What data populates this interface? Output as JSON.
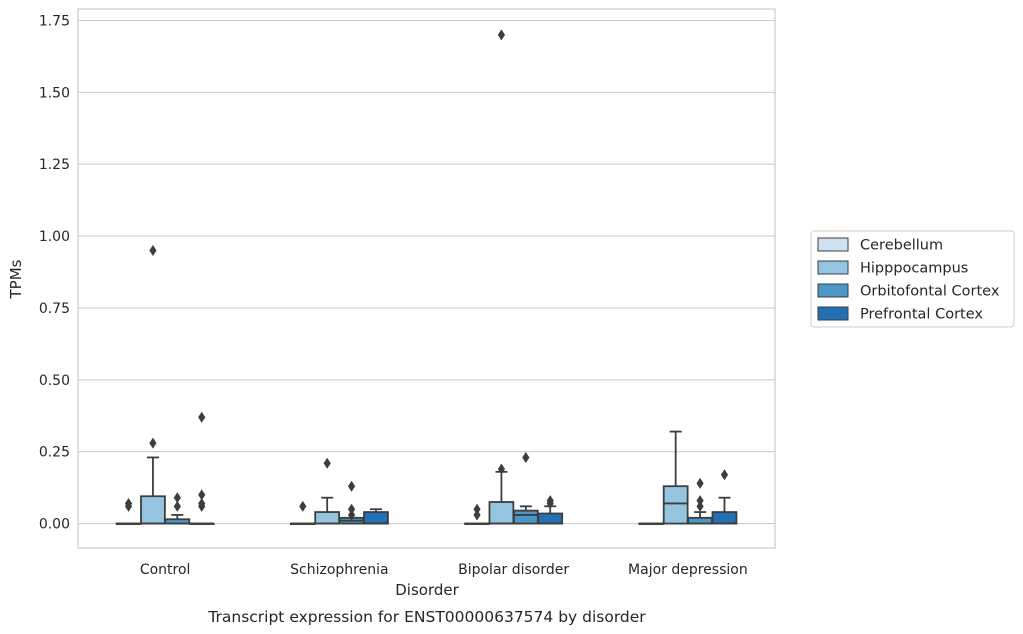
{
  "caption": "Transcript expression for ENST00000637574 by disorder",
  "chart_data": {
    "type": "box",
    "xlabel": "Disorder",
    "ylabel": "TPMs",
    "ylim": [
      -0.085,
      1.79
    ],
    "yticks": [
      0.0,
      0.25,
      0.5,
      0.75,
      1.0,
      1.25,
      1.5,
      1.75
    ],
    "ytick_labels": [
      "0.00",
      "0.25",
      "0.50",
      "0.75",
      "1.00",
      "1.25",
      "1.50",
      "1.75"
    ],
    "grid": "horizontal",
    "legend_position": "right",
    "categories": [
      "Control",
      "Schizophrenia",
      "Bipolar disorder",
      "Major depression"
    ],
    "series": [
      {
        "name": "Cerebellum",
        "color": "#d0e1f2",
        "boxes": [
          {
            "q1": 0,
            "median": 0,
            "q3": 0,
            "whislo": 0,
            "whishi": 0,
            "fliers": [
              0.06,
              0.07
            ]
          },
          {
            "q1": 0,
            "median": 0,
            "q3": 0,
            "whislo": 0,
            "whishi": 0,
            "fliers": [
              0.06
            ]
          },
          {
            "q1": 0,
            "median": 0,
            "q3": 0,
            "whislo": 0,
            "whishi": 0,
            "fliers": [
              0.03,
              0.05
            ]
          },
          {
            "q1": 0,
            "median": 0,
            "q3": 0,
            "whislo": 0,
            "whishi": 0,
            "fliers": []
          }
        ]
      },
      {
        "name": "Hipppocampus",
        "color": "#94c4df",
        "boxes": [
          {
            "q1": 0,
            "median": 0,
            "q3": 0.095,
            "whislo": 0,
            "whishi": 0.23,
            "fliers": [
              0.28,
              0.95
            ]
          },
          {
            "q1": 0,
            "median": 0,
            "q3": 0.04,
            "whislo": 0,
            "whishi": 0.09,
            "fliers": [
              0.21
            ]
          },
          {
            "q1": 0,
            "median": 0,
            "q3": 0.075,
            "whislo": 0,
            "whishi": 0.18,
            "fliers": [
              0.19,
              1.7
            ]
          },
          {
            "q1": 0,
            "median": 0.07,
            "q3": 0.13,
            "whislo": 0,
            "whishi": 0.32,
            "fliers": []
          }
        ]
      },
      {
        "name": "Orbitofontal Cortex",
        "color": "#4a98c9",
        "boxes": [
          {
            "q1": 0,
            "median": 0,
            "q3": 0.015,
            "whislo": 0,
            "whishi": 0.03,
            "fliers": [
              0.06,
              0.09
            ]
          },
          {
            "q1": 0,
            "median": 0.01,
            "q3": 0.02,
            "whislo": 0,
            "whishi": 0.02,
            "fliers": [
              0.03,
              0.05,
              0.13
            ]
          },
          {
            "q1": 0,
            "median": 0.03,
            "q3": 0.045,
            "whislo": 0,
            "whishi": 0.06,
            "fliers": [
              0.23
            ]
          },
          {
            "q1": 0,
            "median": 0,
            "q3": 0.02,
            "whislo": 0,
            "whishi": 0.04,
            "fliers": [
              0.06,
              0.08,
              0.14
            ]
          }
        ]
      },
      {
        "name": "Prefrontal Cortex",
        "color": "#2270b5",
        "boxes": [
          {
            "q1": 0,
            "median": 0,
            "q3": 0,
            "whislo": 0,
            "whishi": 0,
            "fliers": [
              0.06,
              0.07,
              0.1,
              0.37
            ]
          },
          {
            "q1": 0,
            "median": 0,
            "q3": 0.04,
            "whislo": 0,
            "whishi": 0.05,
            "fliers": []
          },
          {
            "q1": 0,
            "median": 0,
            "q3": 0.035,
            "whislo": 0,
            "whishi": 0.06,
            "fliers": [
              0.07,
              0.08
            ]
          },
          {
            "q1": 0,
            "median": 0,
            "q3": 0.04,
            "whislo": 0,
            "whishi": 0.09,
            "fliers": [
              0.17
            ]
          }
        ]
      }
    ]
  }
}
